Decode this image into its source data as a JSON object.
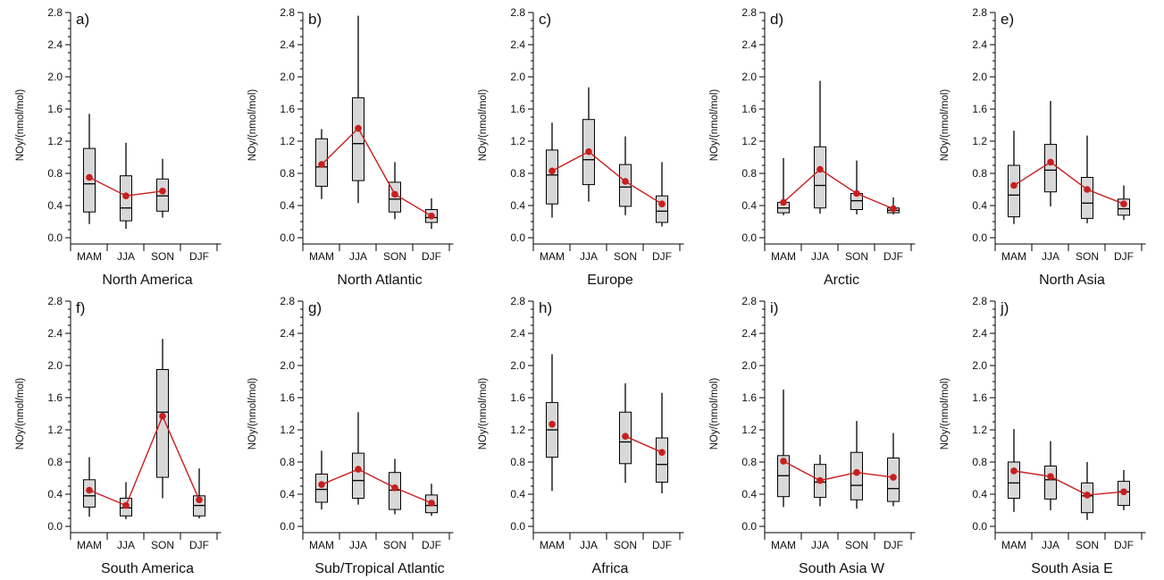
{
  "figure": {
    "y_tick_labels": [
      "0.0",
      "0.4",
      "0.8",
      "1.2",
      "1.6",
      "2.0",
      "2.4",
      "2.8"
    ],
    "colors": {
      "box_fill": "#d8d8d8",
      "box_stroke": "#000000",
      "mean": "#c81e1e",
      "axis": "#000000"
    }
  },
  "chart_data": [
    {
      "type": "box",
      "panel": "a)",
      "title": "North America",
      "ylabel": "NOy/(nmol/mol)",
      "ylim": [
        0,
        2.8
      ],
      "categories": [
        "MAM",
        "JJA",
        "SON",
        "DJF"
      ],
      "boxes": [
        {
          "min": 0.17,
          "q1": 0.32,
          "median": 0.67,
          "q3": 1.11,
          "max": 1.54
        },
        {
          "min": 0.11,
          "q1": 0.21,
          "median": 0.37,
          "q3": 0.77,
          "max": 1.18
        },
        {
          "min": 0.25,
          "q1": 0.33,
          "median": 0.52,
          "q3": 0.73,
          "max": 0.98
        },
        null
      ],
      "means": [
        0.75,
        0.52,
        0.58,
        null
      ]
    },
    {
      "type": "box",
      "panel": "b)",
      "title": "North Atlantic",
      "ylabel": "NOy/(nmol/mol)",
      "ylim": [
        0,
        2.8
      ],
      "categories": [
        "MAM",
        "JJA",
        "SON",
        "DJF"
      ],
      "boxes": [
        {
          "min": 0.48,
          "q1": 0.64,
          "median": 0.88,
          "q3": 1.23,
          "max": 1.35
        },
        {
          "min": 0.43,
          "q1": 0.71,
          "median": 1.17,
          "q3": 1.74,
          "max": 2.76
        },
        {
          "min": 0.23,
          "q1": 0.32,
          "median": 0.48,
          "q3": 0.69,
          "max": 0.94
        },
        {
          "min": 0.11,
          "q1": 0.19,
          "median": 0.25,
          "q3": 0.35,
          "max": 0.49
        }
      ],
      "means": [
        0.91,
        1.36,
        0.54,
        0.27
      ]
    },
    {
      "type": "box",
      "panel": "c)",
      "title": "Europe",
      "ylabel": "NOy/(nmol/mol)",
      "ylim": [
        0,
        2.8
      ],
      "categories": [
        "MAM",
        "JJA",
        "SON",
        "DJF"
      ],
      "boxes": [
        {
          "min": 0.25,
          "q1": 0.42,
          "median": 0.78,
          "q3": 1.09,
          "max": 1.43
        },
        {
          "min": 0.45,
          "q1": 0.66,
          "median": 0.97,
          "q3": 1.47,
          "max": 1.87
        },
        {
          "min": 0.28,
          "q1": 0.39,
          "median": 0.63,
          "q3": 0.91,
          "max": 1.26
        },
        {
          "min": 0.14,
          "q1": 0.19,
          "median": 0.33,
          "q3": 0.52,
          "max": 0.94
        }
      ],
      "means": [
        0.83,
        1.07,
        0.7,
        0.42
      ]
    },
    {
      "type": "box",
      "panel": "d)",
      "title": "Arctic",
      "ylabel": "NOy/(nmol/mol)",
      "ylim": [
        0,
        2.8
      ],
      "categories": [
        "MAM",
        "JJA",
        "SON",
        "DJF"
      ],
      "boxes": [
        {
          "min": 0.28,
          "q1": 0.31,
          "median": 0.37,
          "q3": 0.44,
          "max": 0.99
        },
        {
          "min": 0.3,
          "q1": 0.37,
          "median": 0.65,
          "q3": 1.13,
          "max": 1.95
        },
        {
          "min": 0.29,
          "q1": 0.35,
          "median": 0.46,
          "q3": 0.55,
          "max": 0.96
        },
        {
          "min": 0.29,
          "q1": 0.31,
          "median": 0.34,
          "q3": 0.37,
          "max": 0.5
        }
      ],
      "means": [
        0.44,
        0.85,
        0.55,
        0.36
      ]
    },
    {
      "type": "box",
      "panel": "e)",
      "title": "North Asia",
      "ylabel": "NOy/(nmol/mol)",
      "ylim": [
        0,
        2.8
      ],
      "categories": [
        "MAM",
        "JJA",
        "SON",
        "DJF"
      ],
      "boxes": [
        {
          "min": 0.17,
          "q1": 0.26,
          "median": 0.53,
          "q3": 0.9,
          "max": 1.33
        },
        {
          "min": 0.39,
          "q1": 0.57,
          "median": 0.84,
          "q3": 1.16,
          "max": 1.7
        },
        {
          "min": 0.18,
          "q1": 0.24,
          "median": 0.43,
          "q3": 0.75,
          "max": 1.27
        },
        {
          "min": 0.22,
          "q1": 0.28,
          "median": 0.36,
          "q3": 0.48,
          "max": 0.65
        }
      ],
      "means": [
        0.65,
        0.94,
        0.6,
        0.42
      ]
    },
    {
      "type": "box",
      "panel": "f)",
      "title": "South America",
      "ylabel": "NOy/(nmol/mol)",
      "ylim": [
        0,
        2.8
      ],
      "categories": [
        "MAM",
        "JJA",
        "SON",
        "DJF"
      ],
      "boxes": [
        {
          "min": 0.12,
          "q1": 0.24,
          "median": 0.38,
          "q3": 0.58,
          "max": 0.86
        },
        {
          "min": 0.09,
          "q1": 0.13,
          "median": 0.23,
          "q3": 0.35,
          "max": 0.55
        },
        {
          "min": 0.35,
          "q1": 0.61,
          "median": 1.42,
          "q3": 1.95,
          "max": 2.33
        },
        {
          "min": 0.1,
          "q1": 0.13,
          "median": 0.26,
          "q3": 0.38,
          "max": 0.72
        }
      ],
      "means": [
        0.45,
        0.26,
        1.37,
        0.33
      ]
    },
    {
      "type": "box",
      "panel": "g)",
      "title": "Sub/Tropical Atlantic",
      "ylabel": "NOy/(nmol/mol)",
      "ylim": [
        0,
        2.8
      ],
      "categories": [
        "MAM",
        "JJA",
        "SON",
        "DJF"
      ],
      "boxes": [
        {
          "min": 0.21,
          "q1": 0.3,
          "median": 0.46,
          "q3": 0.65,
          "max": 0.94
        },
        {
          "min": 0.27,
          "q1": 0.35,
          "median": 0.57,
          "q3": 0.91,
          "max": 1.42
        },
        {
          "min": 0.15,
          "q1": 0.21,
          "median": 0.45,
          "q3": 0.67,
          "max": 0.84
        },
        {
          "min": 0.13,
          "q1": 0.17,
          "median": 0.26,
          "q3": 0.39,
          "max": 0.53
        }
      ],
      "means": [
        0.52,
        0.71,
        0.48,
        0.29
      ]
    },
    {
      "type": "box",
      "panel": "h)",
      "title": "Africa",
      "ylabel": "NOy/(nmol/mol)",
      "ylim": [
        0,
        2.8
      ],
      "categories": [
        "MAM",
        "JJA",
        "SON",
        "DJF"
      ],
      "boxes": [
        {
          "min": 0.44,
          "q1": 0.86,
          "median": 1.2,
          "q3": 1.54,
          "max": 2.14
        },
        null,
        {
          "min": 0.54,
          "q1": 0.78,
          "median": 1.05,
          "q3": 1.42,
          "max": 1.78
        },
        {
          "min": 0.41,
          "q1": 0.55,
          "median": 0.77,
          "q3": 1.1,
          "max": 1.66
        }
      ],
      "means": [
        1.27,
        null,
        1.12,
        0.92
      ]
    },
    {
      "type": "box",
      "panel": "i)",
      "title": "South Asia W",
      "ylabel": "NOy/(nmol/mol)",
      "ylim": [
        0,
        2.8
      ],
      "categories": [
        "MAM",
        "JJA",
        "SON",
        "DJF"
      ],
      "boxes": [
        {
          "min": 0.24,
          "q1": 0.37,
          "median": 0.63,
          "q3": 0.88,
          "max": 1.7
        },
        {
          "min": 0.25,
          "q1": 0.36,
          "median": 0.55,
          "q3": 0.77,
          "max": 0.89
        },
        {
          "min": 0.22,
          "q1": 0.33,
          "median": 0.51,
          "q3": 0.92,
          "max": 1.31
        },
        {
          "min": 0.25,
          "q1": 0.31,
          "median": 0.47,
          "q3": 0.85,
          "max": 1.16
        }
      ],
      "means": [
        0.81,
        0.57,
        0.67,
        0.61
      ]
    },
    {
      "type": "box",
      "panel": "j)",
      "title": "South Asia E",
      "ylabel": "NOy/(nmol/mol)",
      "ylim": [
        0,
        2.8
      ],
      "categories": [
        "MAM",
        "JJA",
        "SON",
        "DJF"
      ],
      "boxes": [
        {
          "min": 0.18,
          "q1": 0.35,
          "median": 0.54,
          "q3": 0.8,
          "max": 1.21
        },
        {
          "min": 0.2,
          "q1": 0.34,
          "median": 0.58,
          "q3": 0.75,
          "max": 1.06
        },
        {
          "min": 0.08,
          "q1": 0.17,
          "median": 0.38,
          "q3": 0.54,
          "max": 0.8
        },
        {
          "min": 0.2,
          "q1": 0.26,
          "median": 0.43,
          "q3": 0.56,
          "max": 0.7
        }
      ],
      "means": [
        0.69,
        0.62,
        0.39,
        0.43
      ]
    }
  ]
}
